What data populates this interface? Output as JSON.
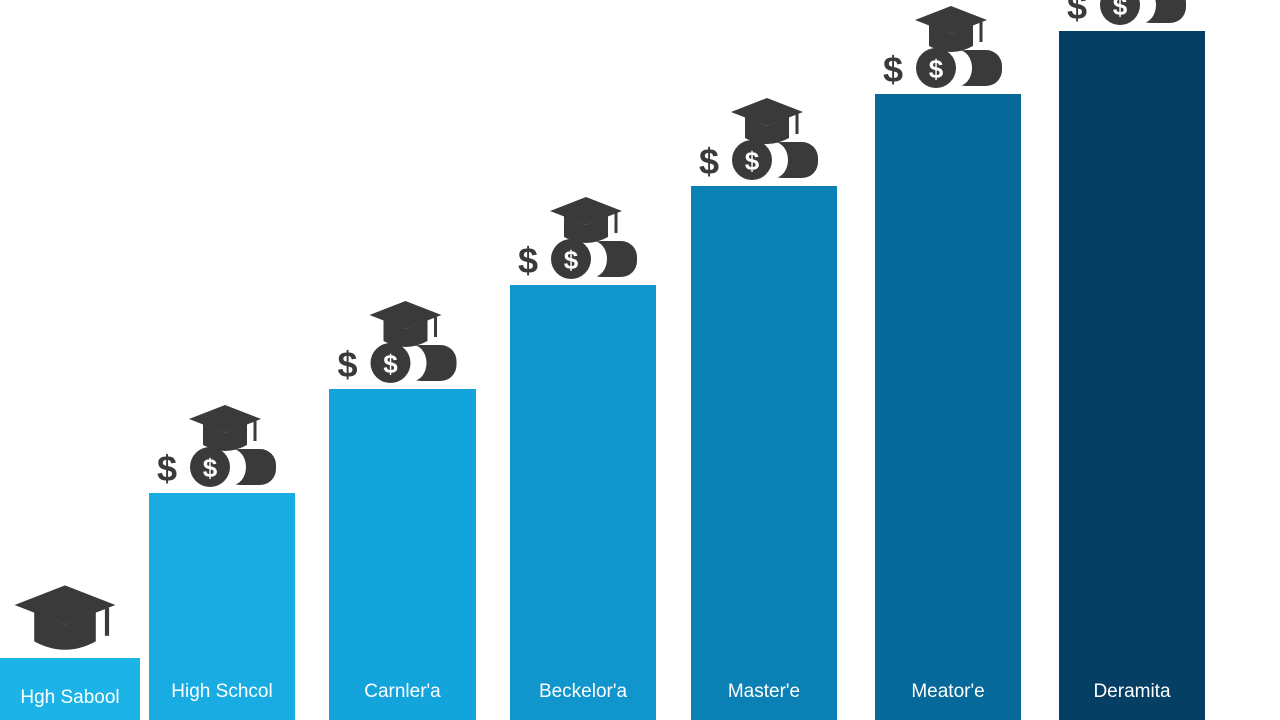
{
  "chart_data": {
    "type": "bar",
    "categories": [
      "Hgh Sabool",
      "High Schcol",
      "Carnler'a",
      "Beckelor'a",
      "Master'e",
      "Meator'e",
      "Deramita"
    ],
    "values": [
      60,
      225,
      329,
      433,
      532,
      624,
      687
    ],
    "colors": [
      "#1cb4e6",
      "#18ace2",
      "#14a4dc",
      "#1095cc",
      "#0b80b4",
      "#07689a",
      "#053f63"
    ],
    "icons": [
      "graduation-cap-icon",
      "dollar-coins-cap-icon",
      "dollar-coins-cap-icon",
      "dollar-coins-cap-icon",
      "dollar-coins-cap-icon",
      "dollar-coins-cap-icon",
      "dollar-coins-cap-icon"
    ],
    "title": "",
    "xlabel": "",
    "ylabel": "",
    "grid": false,
    "legend": "none"
  }
}
